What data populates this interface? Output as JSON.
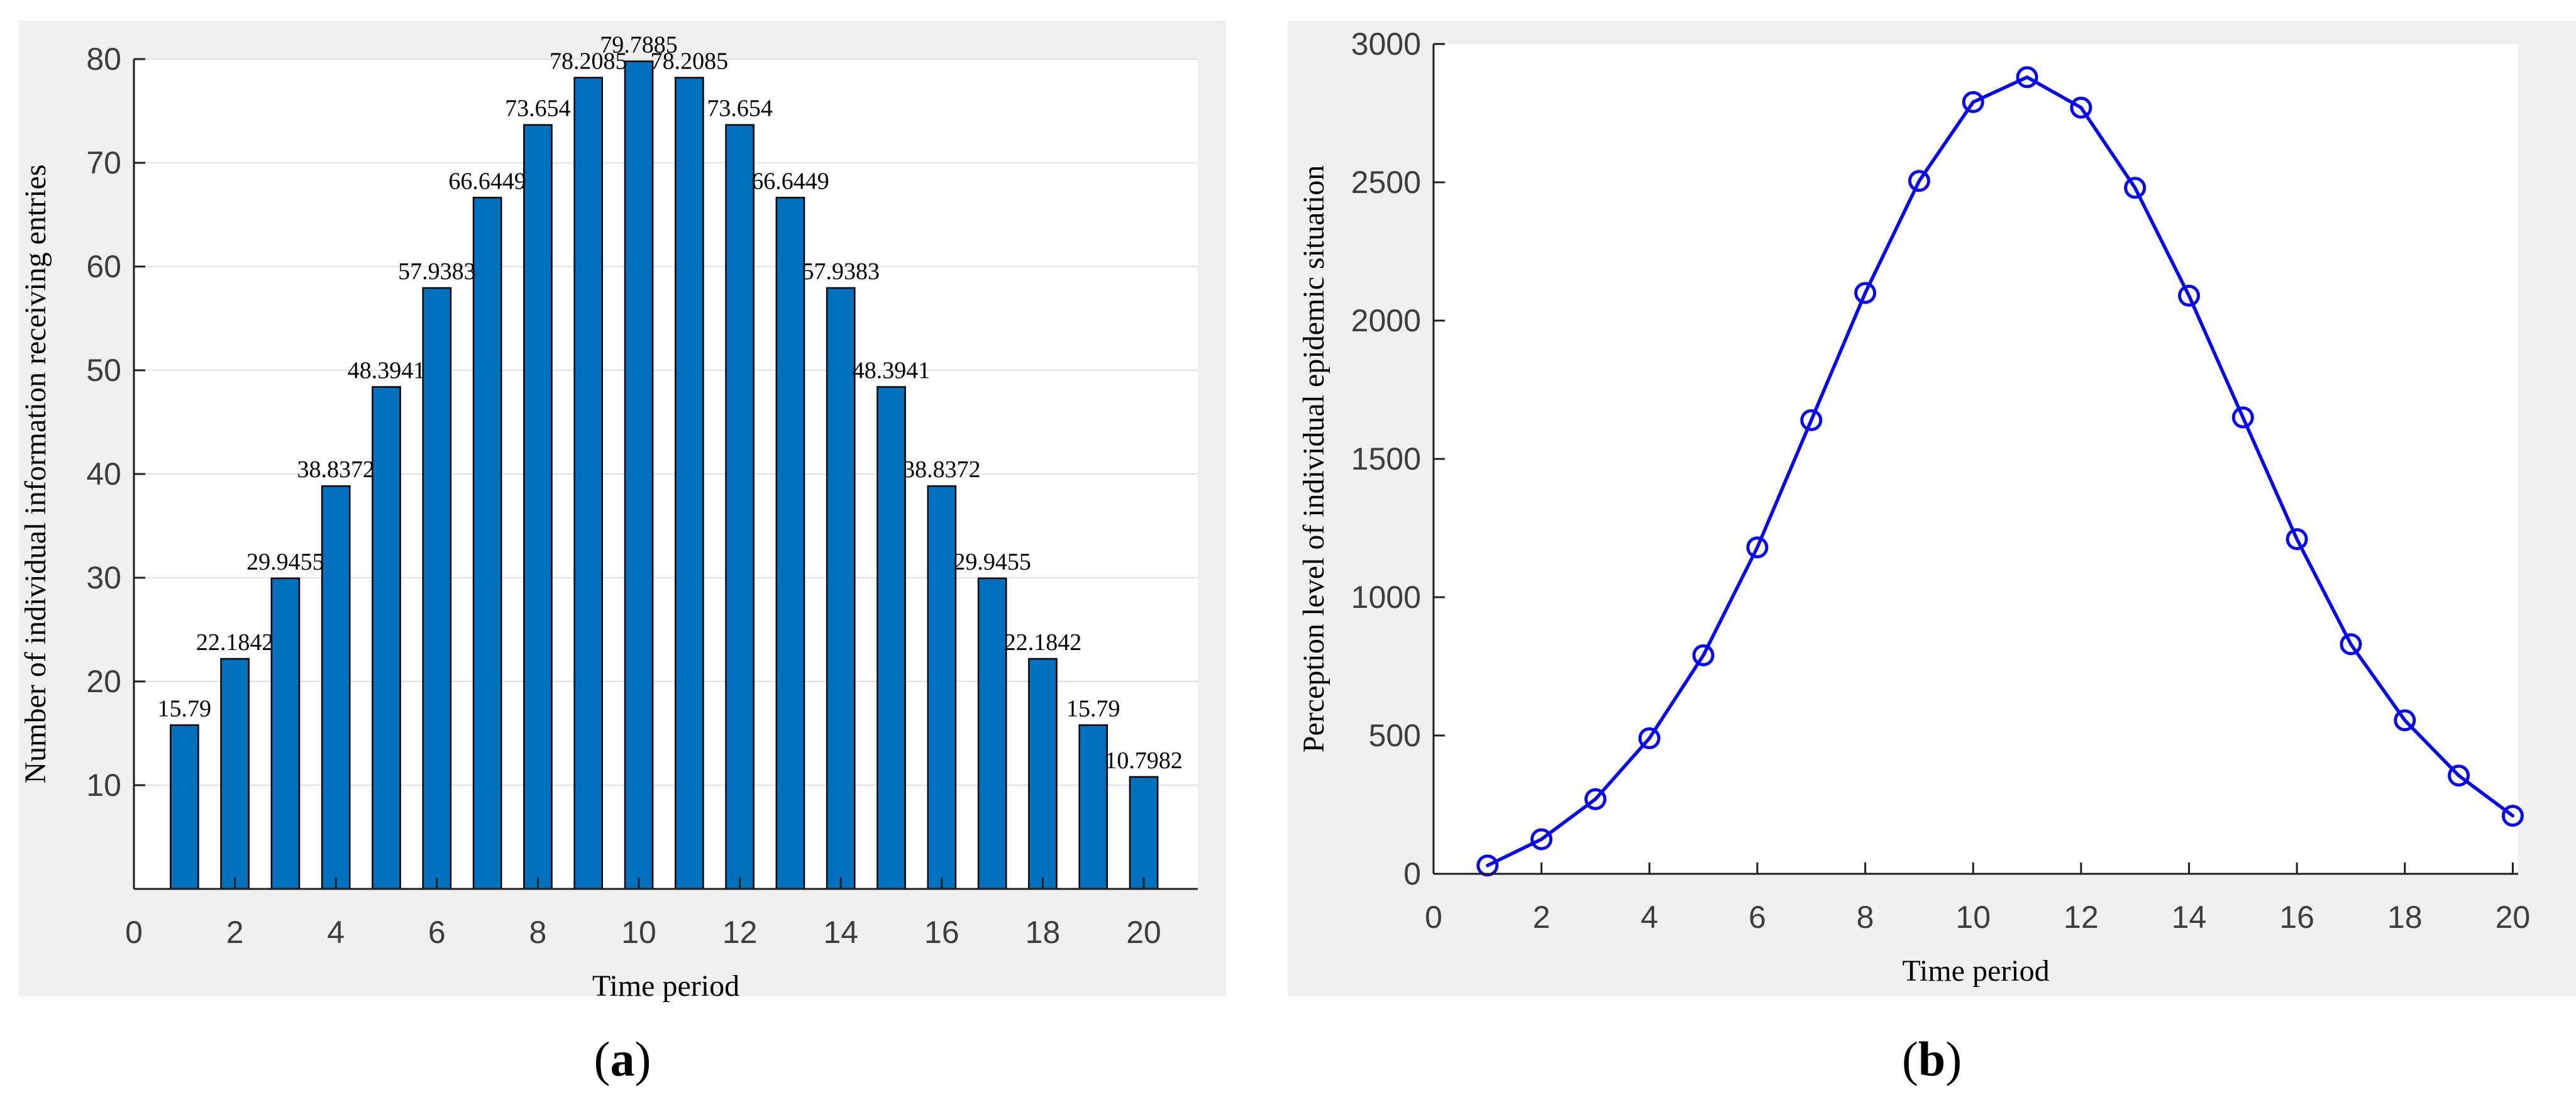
{
  "figure": {
    "captions": {
      "open": "(",
      "close": ")",
      "a": "a",
      "b": "b"
    }
  },
  "colors": {
    "page_bg": "#ffffff",
    "panel_bg": "#efefef",
    "plot_bg": "#ffffff",
    "grid": "#e0e0e0",
    "axis": "#1f1f1f",
    "tick_label": "#3d3d3d",
    "bar_fill": "#0072BD",
    "bar_edge": "#000000",
    "line": "#0808ee",
    "label_text": "#000000"
  },
  "chart_data": [
    {
      "type": "bar",
      "panel": "a",
      "title": "",
      "xlabel": "Time period",
      "ylabel": "Number of individual information receiving entries",
      "categories": [
        1,
        2,
        3,
        4,
        5,
        6,
        7,
        8,
        9,
        10,
        11,
        12,
        13,
        14,
        15,
        16,
        17,
        18,
        19,
        20
      ],
      "values": [
        15.79,
        22.1842,
        29.9455,
        38.8372,
        48.3941,
        57.9383,
        66.6449,
        73.654,
        78.2085,
        79.7885,
        78.2085,
        73.654,
        66.6449,
        57.9383,
        48.3941,
        38.8372,
        29.9455,
        22.1842,
        15.79,
        10.7982
      ],
      "value_labels": [
        "15.79",
        "22.1842",
        "29.9455",
        "38.8372",
        "48.3941",
        "57.9383",
        "66.6449",
        "73.654",
        "78.2085",
        "79.7885",
        "78.2085",
        "73.654",
        "66.6449",
        "57.9383",
        "48.3941",
        "38.8372",
        "29.9455",
        "22.1842",
        "15.79",
        "10.7982"
      ],
      "xticks": [
        0,
        2,
        4,
        6,
        8,
        10,
        12,
        14,
        16,
        18,
        20
      ],
      "yticks": [
        10,
        20,
        30,
        40,
        50,
        60,
        70,
        80
      ],
      "xlim": [
        0,
        21.07
      ],
      "ylim": [
        0,
        80
      ],
      "grid": "horizontal",
      "bar_width_units": 0.55,
      "legend": "none"
    },
    {
      "type": "line",
      "panel": "b",
      "title": "",
      "xlabel": "Time period",
      "ylabel": "Perception level of individual epidemic situation",
      "x": [
        1,
        2,
        3,
        4,
        5,
        6,
        7,
        8,
        9,
        10,
        11,
        12,
        13,
        14,
        15,
        16,
        17,
        18,
        19,
        20
      ],
      "y": [
        30,
        125,
        270,
        490,
        790,
        1180,
        1640,
        2100,
        2505,
        2790,
        2880,
        2770,
        2480,
        2090,
        1650,
        1210,
        830,
        555,
        355,
        210
      ],
      "xticks": [
        0,
        2,
        4,
        6,
        8,
        10,
        12,
        14,
        16,
        18,
        20
      ],
      "yticks": [
        0,
        500,
        1000,
        1500,
        2000,
        2500,
        3000
      ],
      "xlim": [
        0,
        20.1
      ],
      "ylim": [
        0,
        3000
      ],
      "grid": "off",
      "marker": "open-circle",
      "legend": "none"
    }
  ]
}
